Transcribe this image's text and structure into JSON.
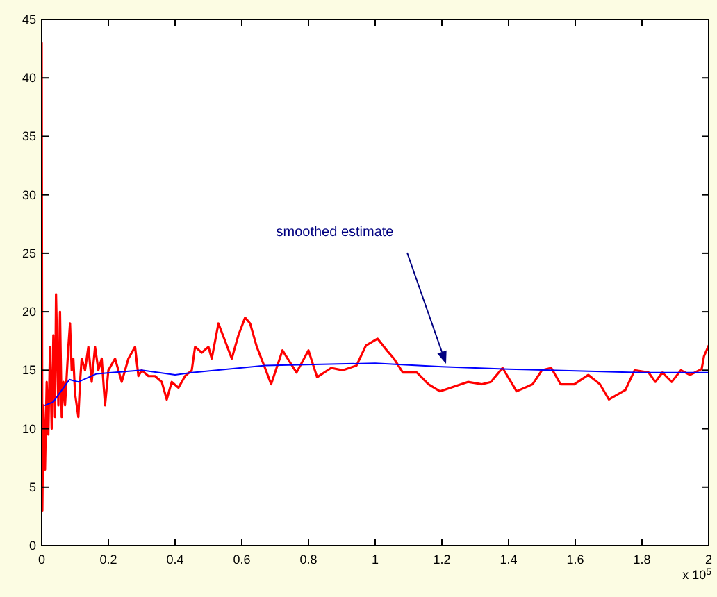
{
  "chart_data": {
    "type": "line",
    "xlim": [
      0,
      2
    ],
    "xticks": [
      0,
      0.2,
      0.4,
      0.6,
      0.8,
      1,
      1.2,
      1.4,
      1.6,
      1.8,
      2
    ],
    "ylim": [
      0,
      45
    ],
    "yticks": [
      0,
      5,
      10,
      15,
      20,
      25,
      30,
      35,
      40,
      45
    ],
    "grid": false,
    "line_style": "solid",
    "marker": "none",
    "series": [
      {
        "color": "#ff0000",
        "x": [
          0,
          0.002,
          0.005,
          0.01,
          0.015,
          0.02,
          0.025,
          0.03,
          0.035,
          0.04,
          0.043,
          0.05,
          0.055,
          0.06,
          0.065,
          0.07,
          0.08,
          0.085,
          0.09,
          0.095,
          0.1,
          0.11,
          0.115,
          0.12,
          0.13,
          0.14,
          0.15,
          0.16,
          0.17,
          0.18,
          0.19,
          0.2,
          0.22,
          0.24,
          0.26,
          0.28,
          0.29,
          0.3,
          0.32,
          0.34,
          0.36,
          0.375,
          0.39,
          0.41,
          0.43,
          0.45,
          0.46,
          0.48,
          0.5,
          0.51,
          0.53,
          0.55,
          0.57,
          0.59,
          0.61,
          0.625,
          0.645,
          0.667,
          0.688,
          0.722,
          0.764,
          0.8,
          0.826,
          0.868,
          0.903,
          0.944,
          0.972,
          1.007,
          1.035,
          1.056,
          1.083,
          1.125,
          1.16,
          1.194,
          1.236,
          1.278,
          1.32,
          1.347,
          1.382,
          1.424,
          1.472,
          1.5,
          1.528,
          1.556,
          1.597,
          1.639,
          1.674,
          1.701,
          1.75,
          1.778,
          1.82,
          1.84,
          1.861,
          1.889,
          1.917,
          1.944,
          1.979,
          1.986,
          2
        ],
        "values": [
          43,
          3,
          12,
          6.5,
          14,
          9.5,
          17,
          10,
          18,
          11,
          21.5,
          12,
          20,
          11,
          14,
          12,
          17,
          19,
          15,
          16,
          13,
          11,
          14,
          16,
          15,
          17,
          14,
          17,
          15,
          16,
          12,
          15,
          16,
          14,
          16,
          17,
          14.5,
          15,
          14.5,
          14.5,
          14,
          12.5,
          14,
          13.5,
          14.5,
          15,
          17,
          16.5,
          17,
          16,
          19,
          17.5,
          16,
          18,
          19.5,
          19,
          17,
          15.4,
          13.8,
          16.7,
          14.8,
          16.7,
          14.4,
          15.2,
          15,
          15.4,
          17.1,
          17.7,
          16.7,
          16,
          14.8,
          14.8,
          13.8,
          13.2,
          13.6,
          14,
          13.8,
          14,
          15.2,
          13.2,
          13.8,
          15,
          15.2,
          13.8,
          13.8,
          14.6,
          13.8,
          12.5,
          13.3,
          15,
          14.8,
          14,
          14.8,
          14,
          15,
          14.6,
          15.1,
          16.2,
          17.1
        ]
      },
      {
        "color": "#0000ff",
        "x": [
          0.01,
          0.035,
          0.083,
          0.11,
          0.165,
          0.3,
          0.4,
          0.45,
          0.67,
          1,
          1.2,
          1.4,
          1.8,
          2
        ],
        "values": [
          12,
          12.3,
          14.2,
          14,
          14.7,
          15,
          14.6,
          14.8,
          15.4,
          15.6,
          15.3,
          15.1,
          14.8,
          14.8
        ]
      }
    ],
    "annotations": [
      "smoothed estimate",
      "x 10$^{5}$"
    ]
  }
}
